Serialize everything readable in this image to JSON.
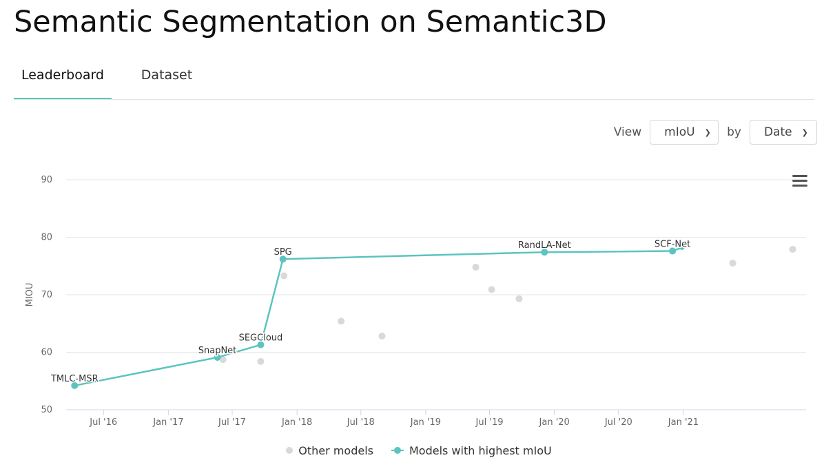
{
  "page": {
    "title": "Semantic Segmentation on Semantic3D",
    "tabs": [
      {
        "label": "Leaderboard",
        "active": true
      },
      {
        "label": "Dataset",
        "active": false
      }
    ]
  },
  "controls": {
    "view_label": "View",
    "metric": "mIoU",
    "by_label": "by",
    "sort": "Date"
  },
  "colors": {
    "accent": "#5bc4bf",
    "other": "#d9d9d9",
    "grid": "#e6e6e6"
  },
  "icons": {
    "menu": "hamburger-menu-icon",
    "select": "chevron-down-icon"
  },
  "chart_data": {
    "type": "scatter",
    "ylabel": "MIOU",
    "ylim": [
      50,
      90
    ],
    "y_ticks": [
      50,
      60,
      70,
      80,
      90
    ],
    "x_ticks": [
      {
        "date": "2016-07-01",
        "label": "Jul '16"
      },
      {
        "date": "2017-01-01",
        "label": "Jan '17"
      },
      {
        "date": "2017-07-01",
        "label": "Jul '17"
      },
      {
        "date": "2018-01-01",
        "label": "Jan '18"
      },
      {
        "date": "2018-07-01",
        "label": "Jul '18"
      },
      {
        "date": "2019-01-01",
        "label": "Jan '19"
      },
      {
        "date": "2019-07-01",
        "label": "Jul '19"
      },
      {
        "date": "2020-01-01",
        "label": "Jan '20"
      },
      {
        "date": "2020-07-01",
        "label": "Jul '20"
      },
      {
        "date": "2021-01-01",
        "label": "Jan '21"
      }
    ],
    "xlim": [
      "2016-03-17",
      "2021-12-15"
    ],
    "grid": true,
    "legend_position": "bottom",
    "series": [
      {
        "name": "Other models",
        "color": "#d9d9d9",
        "points": [
          {
            "date": "2017-06-05",
            "value": 58.7
          },
          {
            "date": "2017-09-20",
            "value": 58.4
          },
          {
            "date": "2017-11-25",
            "value": 73.3
          },
          {
            "date": "2018-05-06",
            "value": 65.4
          },
          {
            "date": "2018-08-30",
            "value": 62.8
          },
          {
            "date": "2019-05-23",
            "value": 74.8
          },
          {
            "date": "2019-07-07",
            "value": 70.9
          },
          {
            "date": "2019-09-23",
            "value": 69.3
          },
          {
            "date": "2021-05-21",
            "value": 75.5
          },
          {
            "date": "2021-11-07",
            "value": 77.9
          }
        ]
      },
      {
        "name": "Models with highest mIoU",
        "color": "#5bc4bf",
        "points": [
          {
            "date": "2016-04-10",
            "value": 54.2,
            "label": "TMLC-MSR"
          },
          {
            "date": "2017-05-20",
            "value": 59.1,
            "label": "SnapNet"
          },
          {
            "date": "2017-09-20",
            "value": 61.3,
            "label": "SEGCloud"
          },
          {
            "date": "2017-11-22",
            "value": 76.2,
            "label": "SPG"
          },
          {
            "date": "2019-12-04",
            "value": 77.4,
            "label": "RandLA-Net"
          },
          {
            "date": "2020-12-01",
            "value": 77.6,
            "label": "SCF-Net"
          },
          {
            "date": "2020-12-28",
            "value": 78.2
          }
        ]
      }
    ]
  }
}
